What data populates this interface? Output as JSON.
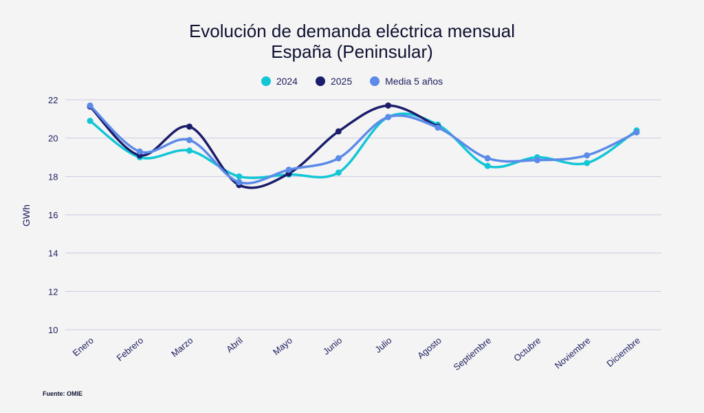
{
  "chart_data": {
    "type": "line",
    "title": [
      "Evolución de demanda eléctrica mensual",
      "España (Peninsular)"
    ],
    "ylabel": "GWh",
    "xlabel": "",
    "ylim": [
      10,
      22
    ],
    "yticks": [
      10,
      12,
      14,
      16,
      18,
      20,
      22
    ],
    "grid": true,
    "legend_position": "top-center",
    "categories": [
      "Enero",
      "Febrero",
      "Marzo",
      "Abril",
      "Mayo",
      "Junio",
      "Julio",
      "Agosto",
      "Septiembre",
      "Octubre",
      "Noviembre",
      "Diciembre"
    ],
    "series": [
      {
        "name": "2024",
        "color": "#12c6d6",
        "values": [
          20.9,
          19.0,
          19.35,
          18.0,
          18.1,
          18.2,
          21.1,
          20.7,
          18.55,
          19.0,
          18.7,
          20.4
        ]
      },
      {
        "name": "2025",
        "color": "#1b1d6b",
        "values": [
          21.65,
          19.1,
          20.6,
          17.55,
          18.15,
          20.35,
          21.7,
          20.6,
          null,
          null,
          null,
          null
        ]
      },
      {
        "name": "Media 5 años",
        "color": "#5b8ae8",
        "values": [
          21.7,
          19.3,
          19.9,
          17.7,
          18.35,
          18.95,
          21.1,
          20.55,
          18.95,
          18.85,
          19.1,
          20.3
        ]
      }
    ],
    "source": "Fuente: OMIE"
  }
}
